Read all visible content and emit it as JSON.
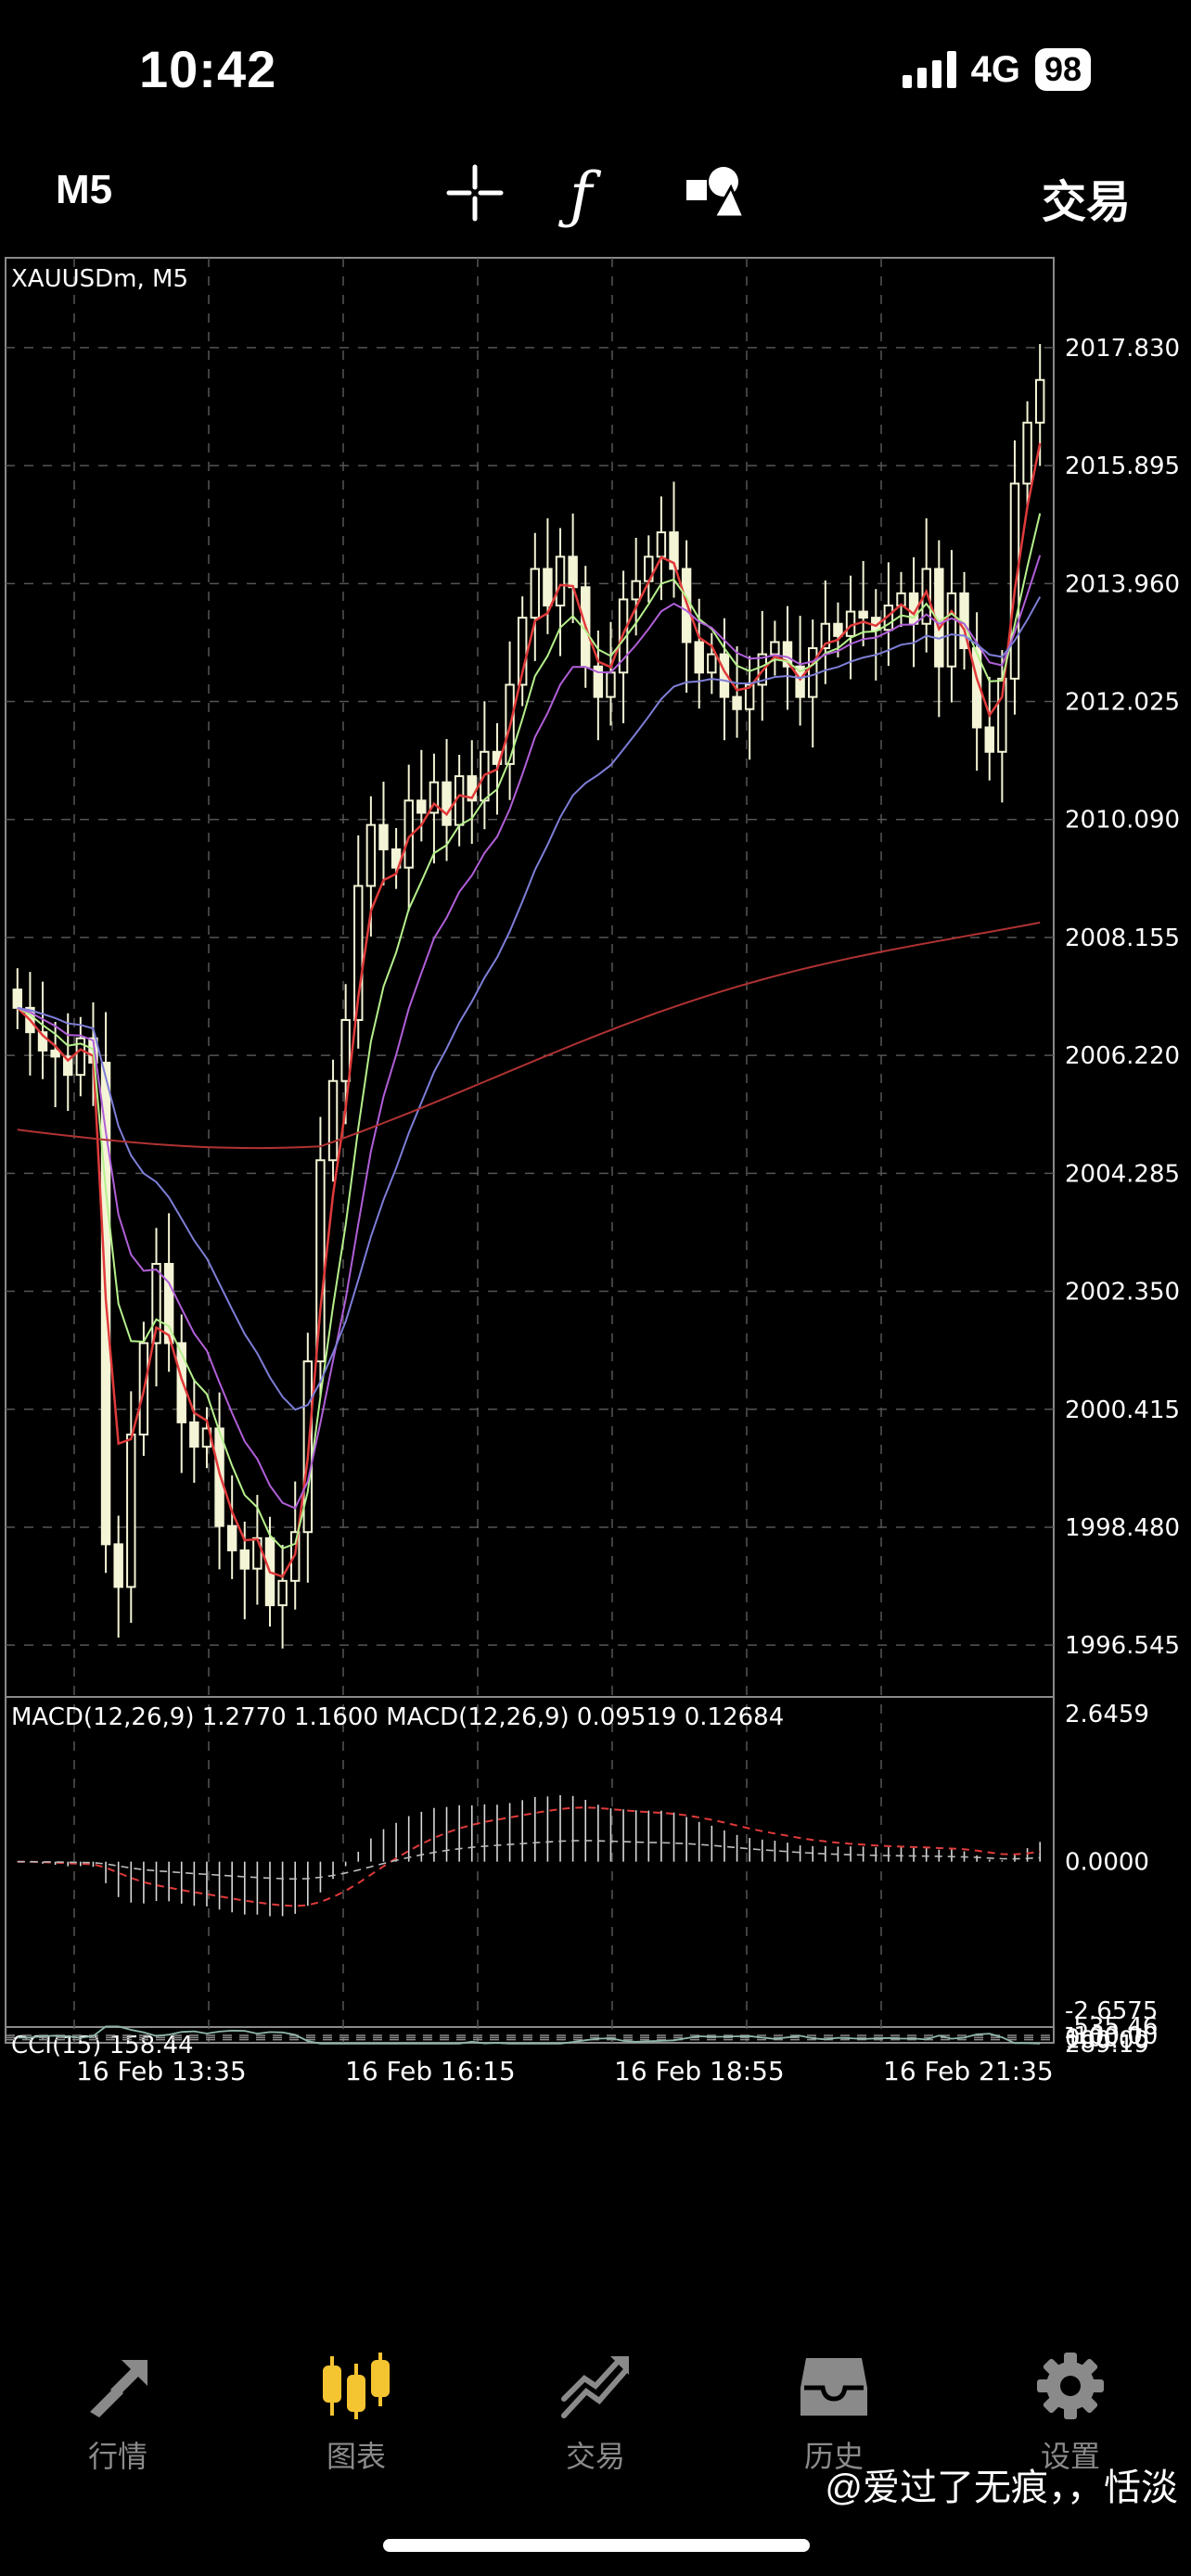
{
  "status_bar": {
    "time": "10:42",
    "network": "4G",
    "battery": "98"
  },
  "toolbar": {
    "timeframe": "M5",
    "trade_label": "交易",
    "icons": [
      "crosshair-icon",
      "function-icon",
      "objects-icon"
    ]
  },
  "chart": {
    "symbol_label": "XAUUSDm, M5",
    "price_ticks": [
      "2017.830",
      "2015.895",
      "2013.960",
      "2012.025",
      "2010.090",
      "2008.155",
      "2006.220",
      "2004.285",
      "2002.350",
      "2000.415",
      "1998.480",
      "1996.545"
    ],
    "macd_label": "MACD(12,26,9) 1.2770 1.1600 MACD(12,26,9) 0.09519 0.12684",
    "macd_ticks": [
      "2.6459",
      "0.0000",
      "-2.6575"
    ],
    "cci_label": "CCI(15) 158.44",
    "cci_ticks": [
      "289.19",
      "100.00",
      "0.00",
      "-100.00",
      "-535.46"
    ],
    "time_ticks": [
      "16 Feb 13:35",
      "16 Feb 16:15",
      "16 Feb 18:55",
      "16 Feb 21:35"
    ],
    "colors": {
      "candle": "#f4f4d6",
      "ma_red": "#e03a3a",
      "ma_green": "#b6f08c",
      "ma_purple": "#b05fd8",
      "ma_blue": "#7e7ed8",
      "ma_slow": "#b03232",
      "grid": "#555555"
    }
  },
  "chart_data": {
    "type": "line",
    "symbol": "XAUUSDm",
    "timeframe": "M5",
    "x_ticks": [
      "16 Feb 13:35",
      "16 Feb 16:15",
      "16 Feb 18:55",
      "16 Feb 21:35"
    ],
    "ylim": [
      1996.0,
      2019.0
    ],
    "close_series": [
      2007.0,
      2006.6,
      2006.3,
      2006.2,
      2005.9,
      2006.5,
      2006.1,
      1998.2,
      1997.5,
      2000.0,
      2001.5,
      2002.8,
      2001.5,
      2000.2,
      1999.8,
      2000.1,
      1998.5,
      1998.1,
      1997.8,
      1998.3,
      1997.2,
      1997.6,
      1998.4,
      2001.2,
      2004.5,
      2005.8,
      2006.8,
      2009.0,
      2010.0,
      2009.6,
      2009.3,
      2010.4,
      2010.2,
      2010.7,
      2010.0,
      2010.8,
      2010.4,
      2011.2,
      2011.0,
      2012.3,
      2013.4,
      2014.2,
      2013.6,
      2014.4,
      2013.9,
      2012.6,
      2012.1,
      2012.5,
      2013.7,
      2014.0,
      2014.4,
      2014.8,
      2014.2,
      2013.0,
      2012.5,
      2012.8,
      2012.1,
      2011.9,
      2012.3,
      2012.8,
      2013.0,
      2012.6,
      2012.1,
      2012.9,
      2013.3,
      2013.1,
      2013.5,
      2013.4,
      2013.2,
      2013.6,
      2013.8,
      2013.3,
      2014.2,
      2012.6,
      2013.8,
      2012.9,
      2011.6,
      2011.2,
      2012.4,
      2015.6,
      2016.6,
      2017.3
    ],
    "macd": {
      "value_1": 1.277,
      "value_2": 1.16,
      "value_3": 0.09519,
      "value_4": 0.12684,
      "ylim": [
        -2.6575,
        2.6459
      ]
    },
    "cci": {
      "period": 15,
      "value": 158.44,
      "ylim": [
        -535.46,
        289.19
      ]
    }
  },
  "tabs": [
    {
      "label": "行情",
      "icon": "quotes-icon",
      "active": false
    },
    {
      "label": "图表",
      "icon": "chart-candles-icon",
      "active": true
    },
    {
      "label": "交易",
      "icon": "trade-icon",
      "active": false
    },
    {
      "label": "历史",
      "icon": "history-icon",
      "active": false
    },
    {
      "label": "设置",
      "icon": "settings-gear-icon",
      "active": false
    }
  ],
  "watermark": "@爱过了无痕，，恬淡"
}
